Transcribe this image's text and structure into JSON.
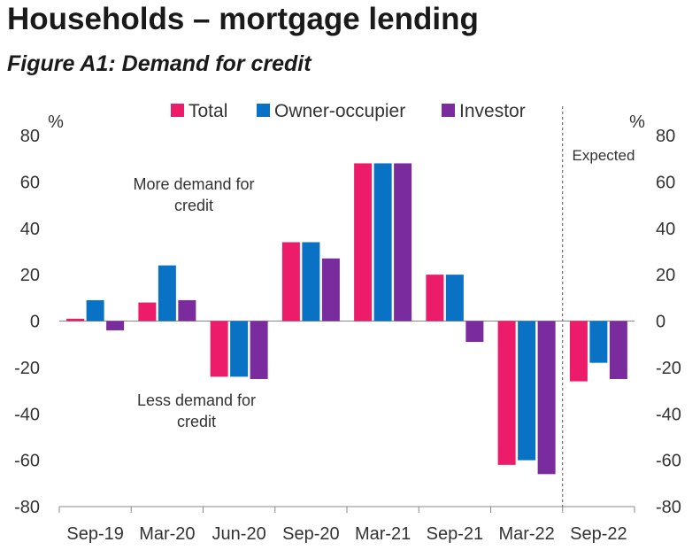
{
  "page_title": "Households – mortgage lending",
  "figure_title": "Figure A1: Demand for credit",
  "chart_data": {
    "type": "bar",
    "categories": [
      "Sep-19",
      "Mar-20",
      "Jun-20",
      "Sep-20",
      "Mar-21",
      "Sep-21",
      "Mar-22",
      "Sep-22"
    ],
    "series": [
      {
        "name": "Total",
        "color": "#ec1c6b",
        "values": [
          1,
          8,
          -24,
          34,
          68,
          20,
          -62,
          -26
        ]
      },
      {
        "name": "Owner-occupier",
        "color": "#0a72c4",
        "values": [
          9,
          24,
          -24,
          34,
          68,
          20,
          -60,
          -18
        ]
      },
      {
        "name": "Investor",
        "color": "#7a2c9e",
        "values": [
          -4,
          9,
          -25,
          27,
          68,
          -9,
          -66,
          -25
        ]
      }
    ],
    "ylim": [
      -80,
      80
    ],
    "yticks": [
      80,
      60,
      40,
      20,
      0,
      -20,
      -40,
      -60,
      -80
    ],
    "ylabel_left": "%",
    "ylabel_right": "%",
    "legend_position": "top",
    "annotations": {
      "more_demand": [
        "More demand for",
        "credit"
      ],
      "less_demand": [
        "Less demand for",
        "credit"
      ],
      "expected": "Expected"
    }
  }
}
